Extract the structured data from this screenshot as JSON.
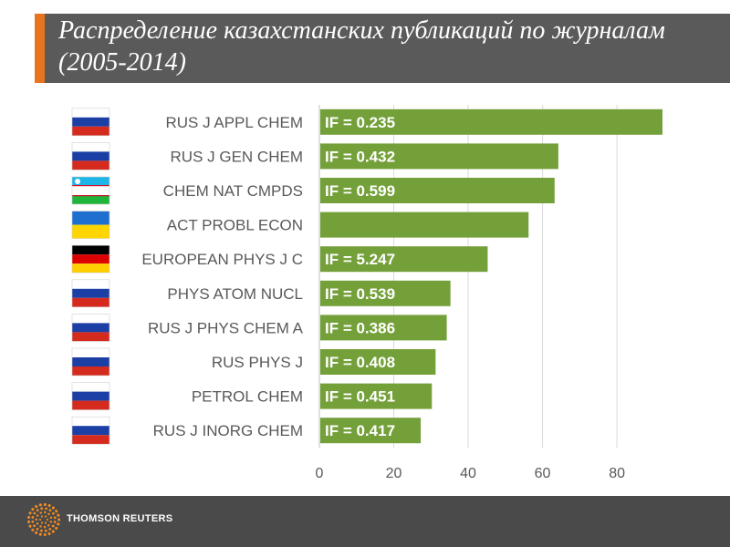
{
  "title": "Распределение казахстанских публикаций по журналам (2005-2014)",
  "footer": {
    "brand": "THOMSON REUTERS"
  },
  "colors": {
    "bar": "#74a03a",
    "header": "#5a5a5a",
    "accent": "#e8741e",
    "footer": "#4a4a4a",
    "grid": "#d9d9d9"
  },
  "chart_data": {
    "type": "bar",
    "orientation": "horizontal",
    "title": "Распределение казахстанских публикаций по журналам (2005-2014)",
    "xlabel": "",
    "ylabel": "",
    "xlim": [
      0,
      92
    ],
    "xticks": [
      0,
      20,
      40,
      60,
      80
    ],
    "grid": true,
    "categories": [
      "RUS J APPL CHEM",
      "RUS J GEN CHEM",
      "CHEM NAT CMPDS",
      "ACT PROBL ECON",
      "EUROPEAN PHYS J C",
      "PHYS ATOM NUCL",
      "RUS J PHYS CHEM A",
      "RUS PHYS J",
      "PETROL CHEM",
      "RUS J INORG CHEM"
    ],
    "values": [
      92,
      64,
      63,
      56,
      45,
      35,
      34,
      31,
      30,
      27
    ],
    "data_labels": [
      "IF = 0.235",
      "IF = 0.432",
      "IF = 0.599",
      "",
      "IF = 5.247",
      "IF = 0.539",
      "IF = 0.386",
      "IF = 0.408",
      "IF = 0.451",
      "IF = 0.417"
    ],
    "flags": [
      "russia-flag",
      "russia-flag",
      "uzbekistan-flag",
      "ukraine-flag",
      "germany-flag",
      "russia-flag",
      "russia-flag",
      "russia-flag",
      "russia-flag",
      "russia-flag"
    ]
  }
}
